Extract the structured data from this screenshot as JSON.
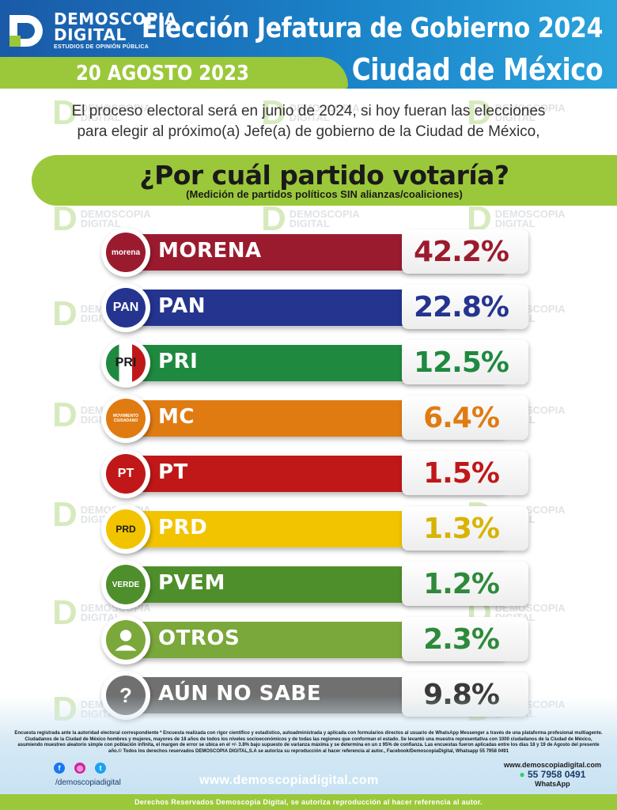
{
  "brand": {
    "name_line1": "DEMOSCOPIA",
    "name_line2": "DIGITAL",
    "tagline": "ESTUDIOS DE OPINIÓN PÚBLICA"
  },
  "header": {
    "title_line1": "Elección Jefatura de Gobierno 2024",
    "title_line2": "Ciudad de México",
    "date": "20 AGOSTO 2023"
  },
  "intro": {
    "line1": "El proceso electoral será en junio de 2024, si hoy fueran las elecciones",
    "line2": "para elegir al próximo(a) Jefe(a) de gobierno de la Ciudad de México,"
  },
  "question": {
    "title": "¿Por cuál partido votaría?",
    "subtitle": "(Medición de partidos políticos SIN alianzas/coaliciones)"
  },
  "chart_data": {
    "type": "bar",
    "title": "¿Por cuál partido votaría?",
    "subtitle": "(Medición de partidos políticos SIN alianzas/coaliciones)",
    "unit": "%",
    "categories": [
      "MORENA",
      "PAN",
      "PRI",
      "MC",
      "PT",
      "PRD",
      "PVEM",
      "OTROS",
      "AÚN NO SABE"
    ],
    "values": [
      42.2,
      22.8,
      12.5,
      6.4,
      1.5,
      1.3,
      1.2,
      2.3,
      9.8
    ],
    "value_labels": [
      "42.2%",
      "22.8%",
      "12.5%",
      "6.4%",
      "1.5%",
      "1.3%",
      "1.2%",
      "2.3%",
      "9.8%"
    ],
    "colors": [
      "#9b1b2e",
      "#24348f",
      "#1f8a3f",
      "#e07b12",
      "#c01818",
      "#f2c400",
      "#4e8f2c",
      "#7aa83a",
      "#707070"
    ],
    "value_colors": [
      "#9b1b2e",
      "#24348f",
      "#1f8a3f",
      "#e07b12",
      "#c01818",
      "#d8b300",
      "#2e8a3a",
      "#2e8a3a",
      "#3a3a3a"
    ],
    "icon_names": [
      "morena-logo-icon",
      "pan-logo-icon",
      "pri-logo-icon",
      "mc-logo-icon",
      "pt-logo-icon",
      "prd-logo-icon",
      "pvem-logo-icon",
      "person-icon",
      "question-icon"
    ],
    "icon_texts": [
      "morena",
      "PAN",
      "PRI",
      "MOVIMIENTO CIUDADANO",
      "PT",
      "PRD",
      "VERDE",
      "",
      "?"
    ]
  },
  "footer": {
    "fineprint": "Encuesta registrada ante la autoridad electoral correspondiente * Encuesta realizada con rigor científico y estadístico, autoadministrada y aplicada con formularios directos al usuario de WhatsApp Messenger a través de una plataforma profesional multiagente. Ciudadanos de la Ciudad de México hombres y mujeres, mayores de 18 años de todos los niveles socioeconómicos y de todas las regiones que conforman el estado. Se levantó una muestra representativa con 1000 ciudadanos de la Ciudad de México, asumiendo muestreo aleatorio simple con población infinita, el margen de error se ubica en el +/- 3.8% bajo supuesto de varianza máxima y se determina en un ± 95% de confianza. Las encuestas fueron aplicadas entre los días 18 y 19 de Agosto del presente año.© Todos los derechos reservados DEMOSCOPIA DIGITAL,S.A se autoriza su reproducción al hacer referencia al autor., Facebook/DemoscopiaDigital, Whatsapp 55 7958 0491",
    "handle": "/demoscopiadigital",
    "website": "www.demoscopiadigital.com",
    "contact_web": "www.demoscopiadigital.com",
    "phone": "55 7958 0491",
    "whatsapp_label": "WhatsApp",
    "rights": "Derechos Reservados Demoscopia Digital, se autoriza reproducción al hacer referencia al autor."
  }
}
